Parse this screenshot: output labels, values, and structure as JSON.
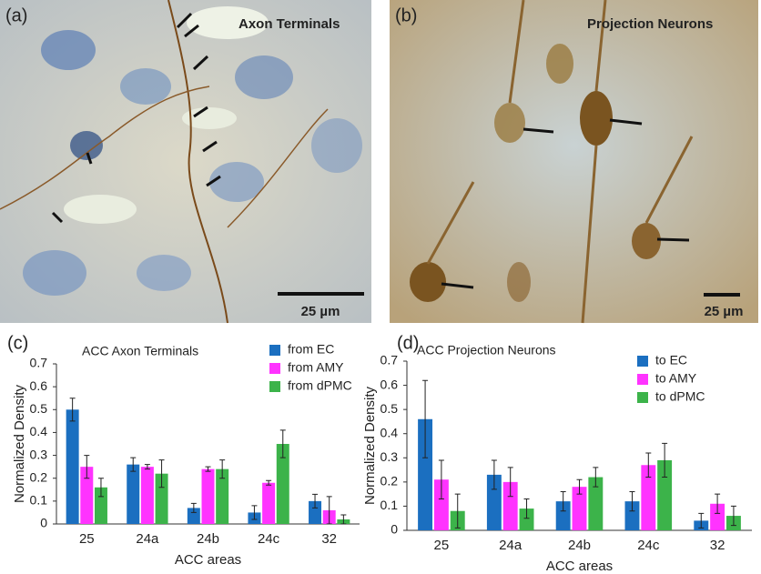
{
  "images": [
    {
      "label": "(a)",
      "title": "Axon Terminals",
      "scale": "25 µm"
    },
    {
      "label": "(b)",
      "title": "Projection Neurons",
      "scale": "25 µm"
    }
  ],
  "chart_data": [
    {
      "type": "bar",
      "label": "(c)",
      "title": "ACC Axon Terminals",
      "xlabel": "ACC areas",
      "ylabel": "Normalized Density",
      "categories": [
        "25",
        "24a",
        "24b",
        "24c",
        "32"
      ],
      "series": [
        {
          "name": "from EC",
          "color": "#1b6fc0",
          "values": [
            0.5,
            0.26,
            0.07,
            0.05,
            0.1
          ],
          "errors": [
            0.05,
            0.03,
            0.02,
            0.03,
            0.03
          ]
        },
        {
          "name": "from AMY",
          "color": "#ff33ff",
          "values": [
            0.25,
            0.25,
            0.24,
            0.18,
            0.06
          ],
          "errors": [
            0.05,
            0.01,
            0.01,
            0.01,
            0.06
          ]
        },
        {
          "name": "from dPMC",
          "color": "#3cb34a",
          "values": [
            0.16,
            0.22,
            0.24,
            0.35,
            0.02
          ],
          "errors": [
            0.04,
            0.06,
            0.04,
            0.06,
            0.02
          ]
        }
      ],
      "ylim": [
        0,
        0.7
      ],
      "yticks": [
        0,
        0.1,
        0.2,
        0.3,
        0.4,
        0.5,
        0.6,
        0.7
      ],
      "legend": "upper right"
    },
    {
      "type": "bar",
      "label": "(d)",
      "title": "ACC Projection Neurons",
      "xlabel": "ACC areas",
      "ylabel": "Normalized Density",
      "categories": [
        "25",
        "24a",
        "24b",
        "24c",
        "32"
      ],
      "series": [
        {
          "name": "to EC",
          "color": "#1b6fc0",
          "values": [
            0.46,
            0.23,
            0.12,
            0.12,
            0.04
          ],
          "errors": [
            0.16,
            0.06,
            0.04,
            0.04,
            0.03
          ]
        },
        {
          "name": "to AMY",
          "color": "#ff33ff",
          "values": [
            0.21,
            0.2,
            0.18,
            0.27,
            0.11
          ],
          "errors": [
            0.08,
            0.06,
            0.03,
            0.05,
            0.04
          ]
        },
        {
          "name": "to dPMC",
          "color": "#3cb34a",
          "values": [
            0.08,
            0.09,
            0.22,
            0.29,
            0.06
          ],
          "errors": [
            0.07,
            0.04,
            0.04,
            0.07,
            0.04
          ]
        }
      ],
      "ylim": [
        0,
        0.7
      ],
      "yticks": [
        0,
        0.1,
        0.2,
        0.3,
        0.4,
        0.5,
        0.6,
        0.7
      ],
      "legend": "upper right"
    }
  ]
}
